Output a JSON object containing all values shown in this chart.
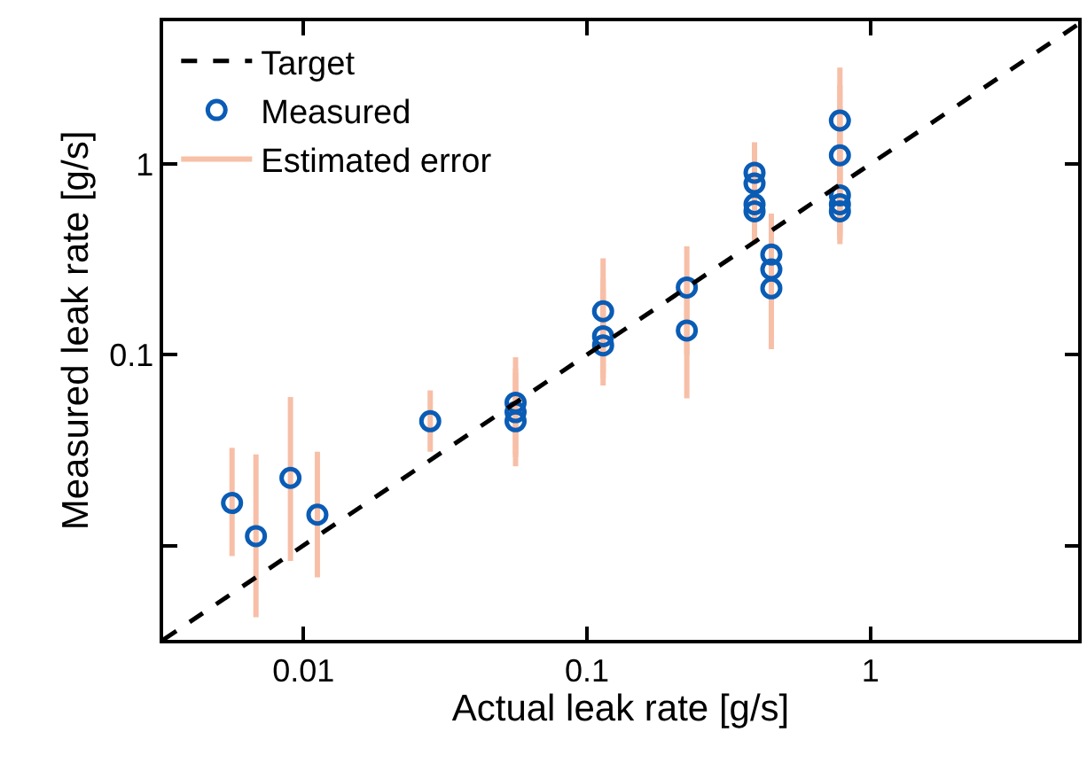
{
  "chart_data": {
    "type": "scatter",
    "xlabel": "Actual leak rate [g/s]",
    "ylabel": "Measured leak rate [g/s]",
    "log": "xy",
    "xlim": [
      0.0032,
      5.4
    ],
    "ylim": [
      0.0032,
      5.6
    ],
    "xticks": [
      0.01,
      0.1,
      1
    ],
    "yticks": [
      {
        "value": 0.01,
        "label": null
      },
      0.1,
      1
    ],
    "grid": false,
    "legend": "top left",
    "series": [
      {
        "name": "Target",
        "type": "line",
        "color": "#000000",
        "line_style": "dashed",
        "marker": "none",
        "x": [
          0.0032,
          5.4
        ],
        "values": [
          0.0032,
          5.4
        ]
      },
      {
        "name": "Measured",
        "color": "#0a5cb5",
        "marker": "circle",
        "x": [
          0.0056,
          0.0068,
          0.009,
          0.0112,
          0.028,
          0.056,
          0.056,
          0.056,
          0.114,
          0.114,
          0.114,
          0.225,
          0.225,
          0.39,
          0.39,
          0.39,
          0.39,
          0.447,
          0.447,
          0.447,
          0.78,
          0.78,
          0.78,
          0.78,
          0.78
        ],
        "values": [
          0.0167,
          0.0112,
          0.0226,
          0.0145,
          0.0448,
          0.056,
          0.05,
          0.0448,
          0.169,
          0.125,
          0.112,
          0.225,
          0.134,
          0.9,
          0.79,
          0.615,
          0.565,
          0.335,
          0.28,
          0.223,
          1.69,
          1.11,
          0.685,
          0.615,
          0.565
        ],
        "errors": [
          [
            0.0088,
            0.0325
          ],
          [
            0.0042,
            0.03
          ],
          [
            0.0083,
            0.06
          ],
          [
            0.0068,
            0.031
          ],
          [
            0.031,
            0.065
          ],
          [
            0.026,
            0.097
          ],
          [
            0.029,
            0.085
          ],
          [
            0.03,
            0.08
          ],
          [
            0.069,
            0.32
          ],
          [
            0.075,
            0.25
          ],
          [
            0.08,
            0.22
          ],
          [
            0.1,
            0.37
          ],
          [
            0.059,
            0.25
          ],
          [
            0.38,
            1.3
          ],
          [
            0.45,
            1.1
          ],
          [
            0.4,
            1.0
          ],
          [
            0.42,
            0.95
          ],
          [
            0.107,
            0.55
          ],
          [
            0.14,
            0.5
          ],
          [
            0.13,
            0.4
          ],
          [
            0.38,
            3.2
          ],
          [
            0.5,
            2.6
          ],
          [
            0.45,
            2.0
          ],
          [
            0.42,
            1.6
          ],
          [
            0.4,
            1.3
          ]
        ]
      },
      {
        "name": "Estimated error",
        "type": "line",
        "color": "#f4a582"
      }
    ]
  }
}
